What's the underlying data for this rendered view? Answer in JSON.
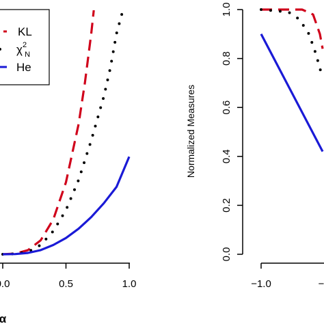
{
  "chart_data": [
    {
      "type": "line",
      "panel": "left",
      "xlabel": "α",
      "ylabel": "",
      "xlim": [
        0.0,
        1.0
      ],
      "x_ticks": [
        "0.0",
        "0.5",
        "1.0"
      ],
      "x_ticks_values": [
        0.0,
        0.5,
        1.0
      ],
      "legend": {
        "placement": "top-left",
        "entries": [
          {
            "label": "KL",
            "style": "dashed",
            "color": "#d0021b"
          },
          {
            "label": "χ²N",
            "label_main": "χ",
            "label_sup": "2",
            "label_sub": "N",
            "style": "dotted",
            "color": "#000000"
          },
          {
            "label": "He",
            "style": "solid",
            "color": "#1a1ad6"
          }
        ]
      },
      "series": [
        {
          "name": "KL",
          "style": "dashed",
          "color": "#d0021b",
          "x": [
            0.0,
            0.1,
            0.2,
            0.3,
            0.4,
            0.5,
            0.6,
            0.65,
            0.7,
            0.72
          ],
          "y": [
            0.0,
            0.003,
            0.018,
            0.06,
            0.15,
            0.31,
            0.56,
            0.74,
            0.95,
            1.05
          ]
        },
        {
          "name": "χ²N",
          "style": "dotted",
          "color": "#000000",
          "x": [
            0.0,
            0.1,
            0.2,
            0.3,
            0.4,
            0.5,
            0.6,
            0.7,
            0.8,
            0.85,
            0.9,
            0.95
          ],
          "y": [
            0.0,
            0.002,
            0.01,
            0.04,
            0.1,
            0.19,
            0.32,
            0.49,
            0.68,
            0.8,
            0.95,
            1.05
          ]
        },
        {
          "name": "He",
          "style": "solid",
          "color": "#1a1ad6",
          "x": [
            0.0,
            0.1,
            0.2,
            0.3,
            0.4,
            0.5,
            0.6,
            0.7,
            0.8,
            0.9,
            1.0
          ],
          "y": [
            0.0,
            0.001,
            0.006,
            0.018,
            0.04,
            0.07,
            0.11,
            0.16,
            0.22,
            0.29,
            0.42
          ]
        }
      ]
    },
    {
      "type": "line",
      "panel": "right",
      "xlabel": "",
      "ylabel": "Normalized Measures",
      "ylim": [
        0.0,
        1.0
      ],
      "y_ticks": [
        "0.0",
        "0.2",
        "0.4",
        "0.6",
        "0.8",
        "1.0"
      ],
      "y_ticks_values": [
        0.0,
        0.2,
        0.4,
        0.6,
        0.8,
        1.0
      ],
      "x_ticks": [
        "−1.0"
      ],
      "x_ticks_values": [
        -1.0
      ],
      "series": [
        {
          "name": "KL",
          "style": "dashed",
          "color": "#d0021b",
          "x": [
            -1.0,
            -0.8,
            -0.7,
            -0.62,
            -0.57,
            -0.55
          ],
          "y": [
            1.0,
            1.0,
            1.0,
            0.98,
            0.9,
            0.84
          ]
        },
        {
          "name": "χ²N",
          "style": "dotted",
          "color": "#000000",
          "x": [
            -1.0,
            -0.8,
            -0.72,
            -0.65,
            -0.6,
            -0.55
          ],
          "y": [
            1.0,
            0.99,
            0.96,
            0.9,
            0.82,
            0.72
          ]
        },
        {
          "name": "He",
          "style": "solid",
          "color": "#1a1ad6",
          "x": [
            -1.0,
            -0.55
          ],
          "y": [
            0.9,
            0.42
          ]
        }
      ]
    }
  ]
}
